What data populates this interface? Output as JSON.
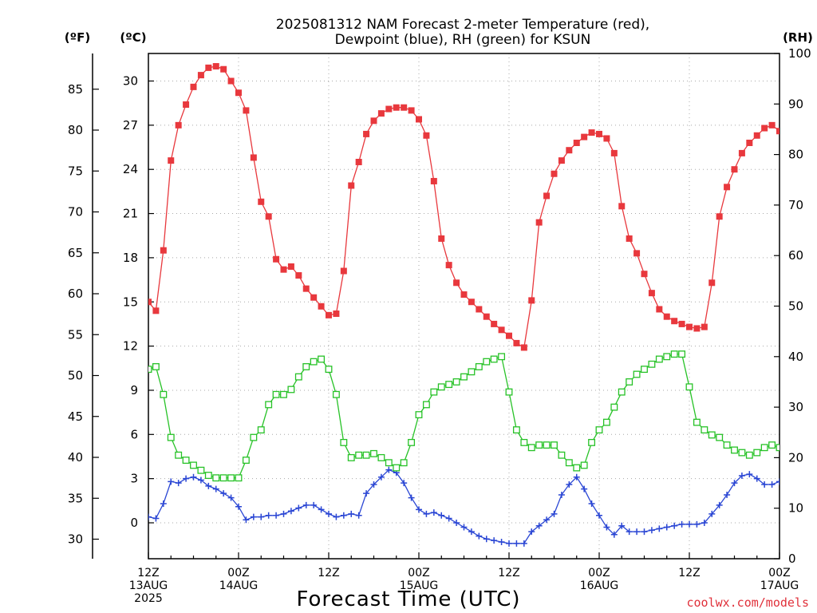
{
  "chart_data": {
    "type": "line",
    "title_line1": "2025081312 NAM Forecast 2-meter Temperature (red),",
    "title_line2": "Dewpoint (blue), RH (green) for KSUN",
    "xlabel": "Forecast Time (UTC)",
    "credit": "coolwx.com/models",
    "units": {
      "fahrenheit": "(ºF)",
      "celsius": "(ºC)",
      "rh": "(RH)"
    },
    "x_range_hours": [
      0,
      84
    ],
    "x_ticks": [
      {
        "h": 0,
        "line1": "12Z",
        "line2": "13AUG",
        "line3": "2025"
      },
      {
        "h": 12,
        "line1": "00Z",
        "line2": "14AUG",
        "line3": ""
      },
      {
        "h": 24,
        "line1": "12Z",
        "line2": "",
        "line3": ""
      },
      {
        "h": 36,
        "line1": "00Z",
        "line2": "15AUG",
        "line3": ""
      },
      {
        "h": 48,
        "line1": "12Z",
        "line2": "",
        "line3": ""
      },
      {
        "h": 60,
        "line1": "00Z",
        "line2": "16AUG",
        "line3": ""
      },
      {
        "h": 72,
        "line1": "12Z",
        "line2": "",
        "line3": ""
      },
      {
        "h": 84,
        "line1": "00Z",
        "line2": "17AUG",
        "line3": ""
      }
    ],
    "celsius_range": [
      -2.5,
      32
    ],
    "celsius_ticks": [
      0,
      3,
      6,
      9,
      12,
      15,
      18,
      21,
      24,
      27,
      30
    ],
    "fahrenheit_ticks": [
      30,
      35,
      40,
      45,
      50,
      55,
      60,
      65,
      70,
      75,
      80,
      85
    ],
    "rh_range": [
      0,
      100
    ],
    "rh_ticks": [
      0,
      10,
      20,
      30,
      40,
      50,
      60,
      70,
      80,
      90,
      100
    ],
    "colors": {
      "temperature": "#e8383d",
      "dewpoint": "#2a46d4",
      "rh": "#27c227",
      "grid": "#a8a8a8"
    },
    "series": [
      {
        "name": "Temperature",
        "units": "C",
        "x": [
          0,
          1,
          2,
          3,
          4,
          5,
          6,
          7,
          8,
          9,
          10,
          11,
          12,
          13,
          14,
          15,
          16,
          17,
          18,
          19,
          20,
          21,
          22,
          23,
          24,
          25,
          26,
          27,
          28,
          29,
          30,
          31,
          32,
          33,
          34,
          35,
          36,
          37,
          38,
          39,
          40,
          41,
          42,
          43,
          44,
          45,
          46,
          47,
          48,
          49,
          50,
          51,
          52,
          53,
          54,
          55,
          56,
          57,
          58,
          59,
          60,
          61,
          62,
          63,
          64,
          65,
          66,
          67,
          68,
          69,
          70,
          71,
          72,
          73,
          74,
          75,
          76,
          77,
          78,
          79,
          80,
          81,
          82,
          83,
          84
        ],
        "values": [
          15.0,
          14.4,
          18.5,
          24.6,
          27.0,
          28.4,
          29.6,
          30.4,
          30.9,
          31.0,
          30.8,
          30.0,
          29.2,
          28.0,
          24.8,
          21.8,
          20.8,
          17.9,
          17.2,
          17.4,
          16.8,
          15.9,
          15.3,
          14.7,
          14.1,
          14.2,
          17.1,
          22.9,
          24.5,
          26.4,
          27.3,
          27.8,
          28.1,
          28.2,
          28.2,
          28.0,
          27.4,
          26.3,
          23.2,
          19.3,
          17.5,
          16.3,
          15.5,
          15.0,
          14.5,
          14.0,
          13.5,
          13.1,
          12.7,
          12.2,
          11.9,
          15.1,
          20.4,
          22.2,
          23.7,
          24.6,
          25.3,
          25.8,
          26.2,
          26.5,
          26.4,
          26.1,
          25.1,
          21.5,
          19.3,
          18.3,
          16.9,
          15.6,
          14.5,
          14.0,
          13.7,
          13.5,
          13.3,
          13.2,
          13.3,
          16.3,
          20.8,
          22.8,
          24.0,
          25.1,
          25.8,
          26.3,
          26.8,
          27.0,
          26.6
        ]
      },
      {
        "name": "Dewpoint",
        "units": "C",
        "x": [
          0,
          1,
          2,
          3,
          4,
          5,
          6,
          7,
          8,
          9,
          10,
          11,
          12,
          13,
          14,
          15,
          16,
          17,
          18,
          19,
          20,
          21,
          22,
          23,
          24,
          25,
          26,
          27,
          28,
          29,
          30,
          31,
          32,
          33,
          34,
          35,
          36,
          37,
          38,
          39,
          40,
          41,
          42,
          43,
          44,
          45,
          46,
          47,
          48,
          49,
          50,
          51,
          52,
          53,
          54,
          55,
          56,
          57,
          58,
          59,
          60,
          61,
          62,
          63,
          64,
          65,
          66,
          67,
          68,
          69,
          70,
          71,
          72,
          73,
          74,
          75,
          76,
          77,
          78,
          79,
          80,
          81,
          82,
          83,
          84
        ],
        "values": [
          0.4,
          0.3,
          1.3,
          2.8,
          2.7,
          3.0,
          3.1,
          2.9,
          2.5,
          2.3,
          2.0,
          1.7,
          1.1,
          0.2,
          0.4,
          0.4,
          0.5,
          0.5,
          0.6,
          0.8,
          1.0,
          1.2,
          1.2,
          0.9,
          0.6,
          0.4,
          0.5,
          0.6,
          0.5,
          2.0,
          2.6,
          3.1,
          3.6,
          3.4,
          2.7,
          1.7,
          0.9,
          0.6,
          0.7,
          0.5,
          0.3,
          0.0,
          -0.3,
          -0.6,
          -0.9,
          -1.1,
          -1.2,
          -1.3,
          -1.4,
          -1.4,
          -1.4,
          -0.6,
          -0.2,
          0.2,
          0.6,
          1.9,
          2.6,
          3.1,
          2.3,
          1.3,
          0.5,
          -0.3,
          -0.8,
          -0.2,
          -0.6,
          -0.6,
          -0.6,
          -0.5,
          -0.4,
          -0.3,
          -0.2,
          -0.1,
          -0.1,
          -0.1,
          0.0,
          0.6,
          1.2,
          1.9,
          2.7,
          3.2,
          3.3,
          3.0,
          2.6,
          2.6,
          2.8
        ]
      },
      {
        "name": "RH",
        "units": "%",
        "x": [
          0,
          1,
          2,
          3,
          4,
          5,
          6,
          7,
          8,
          9,
          10,
          11,
          12,
          13,
          14,
          15,
          16,
          17,
          18,
          19,
          20,
          21,
          22,
          23,
          24,
          25,
          26,
          27,
          28,
          29,
          30,
          31,
          32,
          33,
          34,
          35,
          36,
          37,
          38,
          39,
          40,
          41,
          42,
          43,
          44,
          45,
          46,
          47,
          48,
          49,
          50,
          51,
          52,
          53,
          54,
          55,
          56,
          57,
          58,
          59,
          60,
          61,
          62,
          63,
          64,
          65,
          66,
          67,
          68,
          69,
          70,
          71,
          72,
          73,
          74,
          75,
          76,
          77,
          78,
          79,
          80,
          81,
          82,
          83,
          84
        ],
        "values": [
          37.5,
          38.0,
          32.5,
          24.0,
          20.5,
          19.5,
          18.5,
          17.5,
          16.5,
          16.0,
          16.0,
          16.0,
          16.0,
          19.5,
          24.0,
          25.5,
          30.5,
          32.5,
          32.5,
          33.5,
          36.0,
          38.0,
          39.0,
          39.5,
          37.5,
          32.5,
          23.0,
          20.0,
          20.5,
          20.5,
          20.8,
          20.0,
          19.0,
          18.0,
          19.0,
          23.0,
          28.5,
          30.5,
          33.0,
          34.0,
          34.5,
          35.0,
          36.0,
          37.0,
          38.0,
          39.0,
          39.5,
          40.0,
          33.0,
          25.5,
          23.0,
          22.0,
          22.5,
          22.5,
          22.5,
          20.5,
          19.0,
          18.0,
          18.5,
          23.0,
          25.5,
          27.0,
          30.0,
          33.0,
          35.0,
          36.5,
          37.5,
          38.5,
          39.5,
          40.0,
          40.5,
          40.5,
          34.0,
          27.0,
          25.5,
          24.5,
          24.0,
          22.5,
          21.5,
          21.0,
          20.5,
          21.0,
          22.0,
          22.5,
          22.0
        ]
      }
    ]
  }
}
